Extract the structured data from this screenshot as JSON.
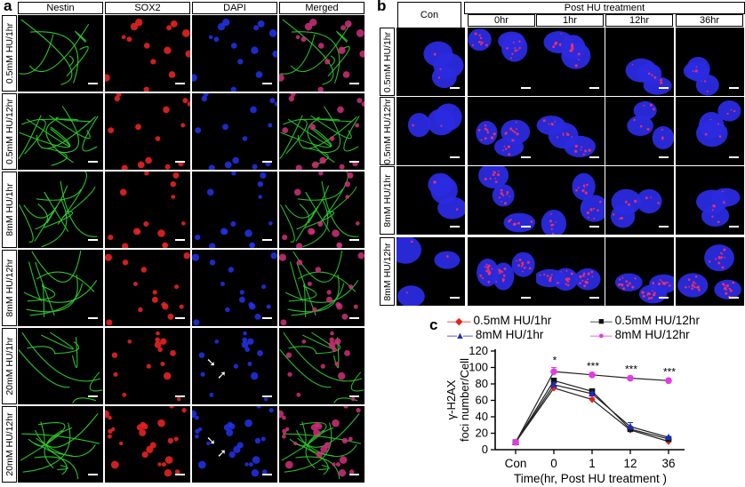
{
  "panel_a": {
    "label": "a",
    "columns": [
      "Nestin",
      "SOX2",
      "DAPI",
      "Merged"
    ],
    "rows": [
      "0.5mM HU/1hr",
      "0.5mM HU/12hr",
      "8mM HU/1hr",
      "8mM HU/12hr",
      "20mM HU/1hr",
      "20mM HU/12hr"
    ]
  },
  "panel_b": {
    "label": "b",
    "con_label": "Con",
    "post_label": "Post HU treatment",
    "timepoints": [
      "0hr",
      "1hr",
      "12hr",
      "36hr"
    ],
    "rows": [
      "0.5mM HU/1hr",
      "0.5mM HU/12hr",
      "8mM HU/1hr",
      "8mM HU/12hr"
    ]
  },
  "panel_c": {
    "label": "c",
    "chart_data": {
      "type": "line",
      "title": "",
      "xlabel": "Time(hr, Post HU treatment )",
      "ylabel": "γ-H2AX foci number/Cell",
      "ylabel_lines": [
        "γ-H2AX",
        "foci number/Cell"
      ],
      "categories": [
        "Con",
        "0",
        "1",
        "12",
        "36"
      ],
      "ylim": [
        0,
        120
      ],
      "yticks": [
        0,
        20,
        40,
        60,
        80,
        100,
        120
      ],
      "legend_position": "top",
      "series": [
        {
          "name": "0.5mM HU/1hr",
          "marker": "diamond",
          "color": "#e2231a",
          "values": [
            9,
            75,
            61,
            24,
            10
          ],
          "errors": [
            1,
            3,
            2,
            2,
            1
          ]
        },
        {
          "name": "0.5mM HU/12hr",
          "marker": "square",
          "color": "#111111",
          "values": [
            9,
            84,
            71,
            25,
            13
          ],
          "errors": [
            1,
            3,
            2,
            2,
            1
          ]
        },
        {
          "name": "8mM HU/1hr",
          "marker": "triangle",
          "color": "#1f2bb8",
          "values": [
            9,
            79,
            68,
            28,
            15
          ],
          "errors": [
            1,
            3,
            2,
            5,
            1
          ]
        },
        {
          "name": "8mM HU/12hr",
          "marker": "circle",
          "color": "#e43be0",
          "values": [
            9,
            95,
            91,
            87,
            84
          ],
          "errors": [
            1,
            5,
            2,
            2,
            2
          ]
        }
      ],
      "significance": [
        "",
        "*",
        "***",
        "***",
        "***"
      ]
    }
  },
  "colors": {
    "nestin": "#2ecc2e",
    "sox2": "#e52222",
    "dapi": "#2233ee",
    "hu_nucleus": "#2a2ae0",
    "foci": "#ff3060"
  }
}
